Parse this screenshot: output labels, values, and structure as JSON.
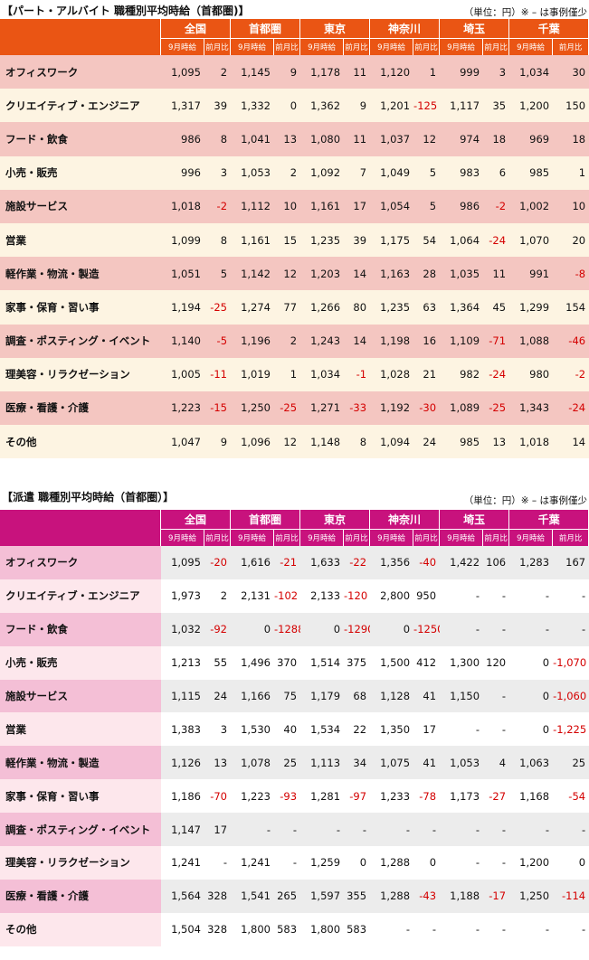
{
  "part": {
    "title": "【パート・アルバイト 職種別平均時給（首都圏)】",
    "unit_note": "（単位：円）※ – は事例僅少",
    "regions": [
      "全国",
      "首都圏",
      "東京",
      "神奈川",
      "埼玉",
      "千葉"
    ],
    "sub_headers": {
      "wage": "9月時給",
      "change": "前月比"
    },
    "rows": [
      {
        "label": "オフィスワーク",
        "cells": [
          "1,095",
          "2",
          "1,145",
          "9",
          "1,178",
          "11",
          "1,120",
          "1",
          "999",
          "3",
          "1,034",
          "30"
        ]
      },
      {
        "label": "クリエイティブ・エンジニア",
        "cells": [
          "1,317",
          "39",
          "1,332",
          "0",
          "1,362",
          "9",
          "1,201",
          "-125",
          "1,117",
          "35",
          "1,200",
          "150"
        ]
      },
      {
        "label": "フード・飲食",
        "cells": [
          "986",
          "8",
          "1,041",
          "13",
          "1,080",
          "11",
          "1,037",
          "12",
          "974",
          "18",
          "969",
          "18"
        ]
      },
      {
        "label": "小売・販売",
        "cells": [
          "996",
          "3",
          "1,053",
          "2",
          "1,092",
          "7",
          "1,049",
          "5",
          "983",
          "6",
          "985",
          "1"
        ]
      },
      {
        "label": "施設サービス",
        "cells": [
          "1,018",
          "-2",
          "1,112",
          "10",
          "1,161",
          "17",
          "1,054",
          "5",
          "986",
          "-2",
          "1,002",
          "10"
        ]
      },
      {
        "label": "営業",
        "cells": [
          "1,099",
          "8",
          "1,161",
          "15",
          "1,235",
          "39",
          "1,175",
          "54",
          "1,064",
          "-24",
          "1,070",
          "20"
        ]
      },
      {
        "label": "軽作業・物流・製造",
        "cells": [
          "1,051",
          "5",
          "1,142",
          "12",
          "1,203",
          "14",
          "1,163",
          "28",
          "1,035",
          "11",
          "991",
          "-8"
        ]
      },
      {
        "label": "家事・保育・習い事",
        "cells": [
          "1,194",
          "-25",
          "1,274",
          "77",
          "1,266",
          "80",
          "1,235",
          "63",
          "1,364",
          "45",
          "1,299",
          "154"
        ]
      },
      {
        "label": "調査・ポスティング・イベント",
        "cells": [
          "1,140",
          "-5",
          "1,196",
          "2",
          "1,243",
          "14",
          "1,198",
          "16",
          "1,109",
          "-71",
          "1,088",
          "-46"
        ]
      },
      {
        "label": "理美容・リラクゼーション",
        "cells": [
          "1,005",
          "-11",
          "1,019",
          "1",
          "1,034",
          "-1",
          "1,028",
          "21",
          "982",
          "-24",
          "980",
          "-2"
        ]
      },
      {
        "label": "医療・看護・介護",
        "cells": [
          "1,223",
          "-15",
          "1,250",
          "-25",
          "1,271",
          "-33",
          "1,192",
          "-30",
          "1,089",
          "-25",
          "1,343",
          "-24"
        ]
      },
      {
        "label": "その他",
        "cells": [
          "1,047",
          "9",
          "1,096",
          "12",
          "1,148",
          "8",
          "1,094",
          "24",
          "985",
          "13",
          "1,018",
          "14"
        ]
      }
    ]
  },
  "haken": {
    "title": "【派遣 職種別平均時給（首都圏）】",
    "unit_note": "（単位：円）※ – は事例僅少",
    "regions": [
      "全国",
      "首都圏",
      "東京",
      "神奈川",
      "埼玉",
      "千葉"
    ],
    "sub_headers": {
      "wage": "9月時給",
      "change": "前月比"
    },
    "rows": [
      {
        "label": "オフィスワーク",
        "cells": [
          "1,095",
          "-20",
          "1,616",
          "-21",
          "1,633",
          "-22",
          "1,356",
          "-40",
          "1,422",
          "106",
          "1,283",
          "167"
        ]
      },
      {
        "label": "クリエイティブ・エンジニア",
        "cells": [
          "1,973",
          "2",
          "2,131",
          "-102",
          "2,133",
          "-120",
          "2,800",
          "950",
          "-",
          "-",
          "-",
          "-"
        ]
      },
      {
        "label": "フード・飲食",
        "cells": [
          "1,032",
          "-92",
          "0",
          "-1288",
          "0",
          "-1290",
          "0",
          "-1250",
          "-",
          "-",
          "-",
          "-"
        ]
      },
      {
        "label": "小売・販売",
        "cells": [
          "1,213",
          "55",
          "1,496",
          "370",
          "1,514",
          "375",
          "1,500",
          "412",
          "1,300",
          "120",
          "0",
          "-1,070"
        ]
      },
      {
        "label": "施設サービス",
        "cells": [
          "1,115",
          "24",
          "1,166",
          "75",
          "1,179",
          "68",
          "1,128",
          "41",
          "1,150",
          "-",
          "0",
          "-1,060"
        ]
      },
      {
        "label": "営業",
        "cells": [
          "1,383",
          "3",
          "1,530",
          "40",
          "1,534",
          "22",
          "1,350",
          "17",
          "-",
          "-",
          "0",
          "-1,225"
        ]
      },
      {
        "label": "軽作業・物流・製造",
        "cells": [
          "1,126",
          "13",
          "1,078",
          "25",
          "1,113",
          "34",
          "1,075",
          "41",
          "1,053",
          "4",
          "1,063",
          "25"
        ]
      },
      {
        "label": "家事・保育・習い事",
        "cells": [
          "1,186",
          "-70",
          "1,223",
          "-93",
          "1,281",
          "-97",
          "1,233",
          "-78",
          "1,173",
          "-27",
          "1,168",
          "-54"
        ]
      },
      {
        "label": "調査・ポスティング・イベント",
        "cells": [
          "1,147",
          "17",
          "-",
          "-",
          "-",
          "-",
          "-",
          "-",
          "-",
          "-",
          "-",
          "-"
        ]
      },
      {
        "label": "理美容・リラクゼーション",
        "cells": [
          "1,241",
          "-",
          "1,241",
          "-",
          "1,259",
          "0",
          "1,288",
          "0",
          "-",
          "-",
          "1,200",
          "0"
        ]
      },
      {
        "label": "医療・看護・介護",
        "cells": [
          "1,564",
          "328",
          "1,541",
          "265",
          "1,597",
          "355",
          "1,288",
          "-43",
          "1,188",
          "-17",
          "1,250",
          "-114"
        ]
      },
      {
        "label": "その他",
        "cells": [
          "1,504",
          "328",
          "1,800",
          "583",
          "1,800",
          "583",
          "-",
          "-",
          "-",
          "-",
          "-",
          "-"
        ]
      }
    ]
  }
}
